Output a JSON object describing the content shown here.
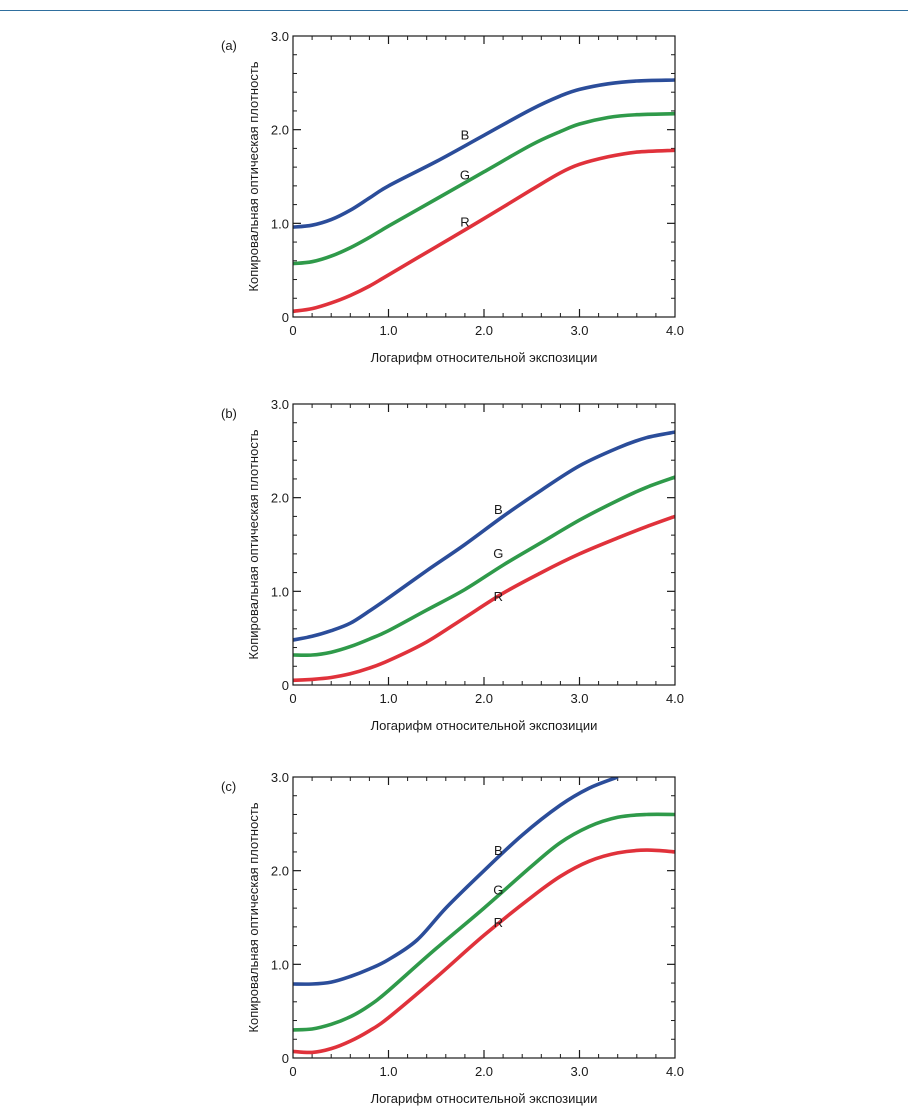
{
  "chart_data": [
    {
      "panel_label": "(a)",
      "type": "line",
      "xlabel": "Логарифм относительной экспозиции",
      "ylabel": "Копировальная оптическая плотность",
      "xlim": [
        0,
        4.0
      ],
      "ylim": [
        0,
        3.0
      ],
      "x_ticks": [
        "0",
        "1.0",
        "2.0",
        "3.0",
        "4.0"
      ],
      "y_ticks": [
        "0",
        "1.0",
        "2.0",
        "3.0"
      ],
      "series": [
        {
          "name": "B",
          "color": "#2b4d9a",
          "points": [
            [
              0,
              0.96
            ],
            [
              0.2,
              0.98
            ],
            [
              0.4,
              1.04
            ],
            [
              0.6,
              1.14
            ],
            [
              0.8,
              1.27
            ],
            [
              1.0,
              1.4
            ],
            [
              1.5,
              1.66
            ],
            [
              2.0,
              1.94
            ],
            [
              2.5,
              2.22
            ],
            [
              2.8,
              2.36
            ],
            [
              3.0,
              2.43
            ],
            [
              3.3,
              2.49
            ],
            [
              3.6,
              2.52
            ],
            [
              4.0,
              2.53
            ]
          ]
        },
        {
          "name": "G",
          "color": "#2f9a4a",
          "points": [
            [
              0,
              0.57
            ],
            [
              0.2,
              0.59
            ],
            [
              0.4,
              0.65
            ],
            [
              0.6,
              0.74
            ],
            [
              0.8,
              0.85
            ],
            [
              1.0,
              0.97
            ],
            [
              1.5,
              1.26
            ],
            [
              2.0,
              1.55
            ],
            [
              2.5,
              1.84
            ],
            [
              2.8,
              1.98
            ],
            [
              3.0,
              2.06
            ],
            [
              3.3,
              2.13
            ],
            [
              3.6,
              2.16
            ],
            [
              4.0,
              2.17
            ]
          ]
        },
        {
          "name": "R",
          "color": "#e0323b",
          "points": [
            [
              0,
              0.06
            ],
            [
              0.2,
              0.09
            ],
            [
              0.4,
              0.15
            ],
            [
              0.6,
              0.23
            ],
            [
              0.8,
              0.33
            ],
            [
              1.0,
              0.45
            ],
            [
              1.5,
              0.75
            ],
            [
              2.0,
              1.05
            ],
            [
              2.5,
              1.36
            ],
            [
              2.8,
              1.54
            ],
            [
              3.0,
              1.63
            ],
            [
              3.3,
              1.71
            ],
            [
              3.6,
              1.76
            ],
            [
              4.0,
              1.78
            ]
          ]
        }
      ],
      "annotations": [
        {
          "text": "B",
          "x": 1.8,
          "y": 1.95
        },
        {
          "text": "G",
          "x": 1.8,
          "y": 1.52
        },
        {
          "text": "R",
          "x": 1.8,
          "y": 1.02
        }
      ]
    },
    {
      "panel_label": "(b)",
      "type": "line",
      "xlabel": "Логарифм относительной экспозиции",
      "ylabel": "Копировальная оптическая плотность",
      "xlim": [
        0,
        4.0
      ],
      "ylim": [
        0,
        3.0
      ],
      "x_ticks": [
        "0",
        "1.0",
        "2.0",
        "3.0",
        "4.0"
      ],
      "y_ticks": [
        "0",
        "1.0",
        "2.0",
        "3.0"
      ],
      "series": [
        {
          "name": "B",
          "color": "#2b4d9a",
          "points": [
            [
              0,
              0.48
            ],
            [
              0.2,
              0.52
            ],
            [
              0.4,
              0.58
            ],
            [
              0.6,
              0.66
            ],
            [
              0.8,
              0.79
            ],
            [
              1.0,
              0.93
            ],
            [
              1.4,
              1.22
            ],
            [
              1.8,
              1.5
            ],
            [
              2.2,
              1.8
            ],
            [
              2.6,
              2.08
            ],
            [
              3.0,
              2.34
            ],
            [
              3.4,
              2.53
            ],
            [
              3.7,
              2.64
            ],
            [
              4.0,
              2.7
            ]
          ]
        },
        {
          "name": "G",
          "color": "#2f9a4a",
          "points": [
            [
              0,
              0.32
            ],
            [
              0.2,
              0.32
            ],
            [
              0.4,
              0.35
            ],
            [
              0.6,
              0.41
            ],
            [
              0.8,
              0.49
            ],
            [
              1.0,
              0.58
            ],
            [
              1.4,
              0.8
            ],
            [
              1.8,
              1.02
            ],
            [
              2.2,
              1.28
            ],
            [
              2.6,
              1.52
            ],
            [
              3.0,
              1.76
            ],
            [
              3.4,
              1.97
            ],
            [
              3.7,
              2.11
            ],
            [
              4.0,
              2.22
            ]
          ]
        },
        {
          "name": "R",
          "color": "#e0323b",
          "points": [
            [
              0,
              0.05
            ],
            [
              0.2,
              0.06
            ],
            [
              0.4,
              0.08
            ],
            [
              0.6,
              0.12
            ],
            [
              0.8,
              0.18
            ],
            [
              1.0,
              0.26
            ],
            [
              1.4,
              0.46
            ],
            [
              1.8,
              0.72
            ],
            [
              2.2,
              0.98
            ],
            [
              2.6,
              1.2
            ],
            [
              3.0,
              1.4
            ],
            [
              3.4,
              1.57
            ],
            [
              3.7,
              1.69
            ],
            [
              4.0,
              1.8
            ]
          ]
        }
      ],
      "annotations": [
        {
          "text": "B",
          "x": 2.15,
          "y": 1.88
        },
        {
          "text": "G",
          "x": 2.15,
          "y": 1.41
        },
        {
          "text": "R",
          "x": 2.15,
          "y": 0.95
        }
      ]
    },
    {
      "panel_label": "(c)",
      "type": "line",
      "xlabel": "Логарифм относительной экспозиции",
      "ylabel": "Копировальная оптическая плотность",
      "xlim": [
        0,
        4.0
      ],
      "ylim": [
        0,
        3.0
      ],
      "x_ticks": [
        "0",
        "1.0",
        "2.0",
        "3.0",
        "4.0"
      ],
      "y_ticks": [
        "0",
        "1.0",
        "2.0",
        "3.0"
      ],
      "series": [
        {
          "name": "B",
          "color": "#2b4d9a",
          "points": [
            [
              0,
              0.79
            ],
            [
              0.2,
              0.79
            ],
            [
              0.4,
              0.81
            ],
            [
              0.6,
              0.87
            ],
            [
              0.8,
              0.95
            ],
            [
              1.0,
              1.05
            ],
            [
              1.3,
              1.26
            ],
            [
              1.6,
              1.6
            ],
            [
              2.0,
              2.0
            ],
            [
              2.4,
              2.38
            ],
            [
              2.8,
              2.7
            ],
            [
              3.1,
              2.88
            ],
            [
              3.4,
              3.0
            ]
          ]
        },
        {
          "name": "G",
          "color": "#2f9a4a",
          "points": [
            [
              0,
              0.3
            ],
            [
              0.2,
              0.31
            ],
            [
              0.4,
              0.36
            ],
            [
              0.6,
              0.44
            ],
            [
              0.8,
              0.56
            ],
            [
              1.0,
              0.72
            ],
            [
              1.5,
              1.17
            ],
            [
              2.0,
              1.6
            ],
            [
              2.5,
              2.05
            ],
            [
              2.8,
              2.3
            ],
            [
              3.1,
              2.47
            ],
            [
              3.4,
              2.57
            ],
            [
              3.7,
              2.6
            ],
            [
              4.0,
              2.6
            ]
          ]
        },
        {
          "name": "R",
          "color": "#e0323b",
          "points": [
            [
              0,
              0.07
            ],
            [
              0.2,
              0.06
            ],
            [
              0.4,
              0.1
            ],
            [
              0.6,
              0.18
            ],
            [
              0.8,
              0.29
            ],
            [
              1.0,
              0.43
            ],
            [
              1.5,
              0.86
            ],
            [
              2.0,
              1.31
            ],
            [
              2.5,
              1.72
            ],
            [
              2.8,
              1.94
            ],
            [
              3.1,
              2.1
            ],
            [
              3.4,
              2.19
            ],
            [
              3.7,
              2.22
            ],
            [
              4.0,
              2.2
            ]
          ]
        }
      ],
      "annotations": [
        {
          "text": "B",
          "x": 2.15,
          "y": 2.22
        },
        {
          "text": "G",
          "x": 2.15,
          "y": 1.8
        },
        {
          "text": "R",
          "x": 2.15,
          "y": 1.45
        }
      ]
    }
  ]
}
